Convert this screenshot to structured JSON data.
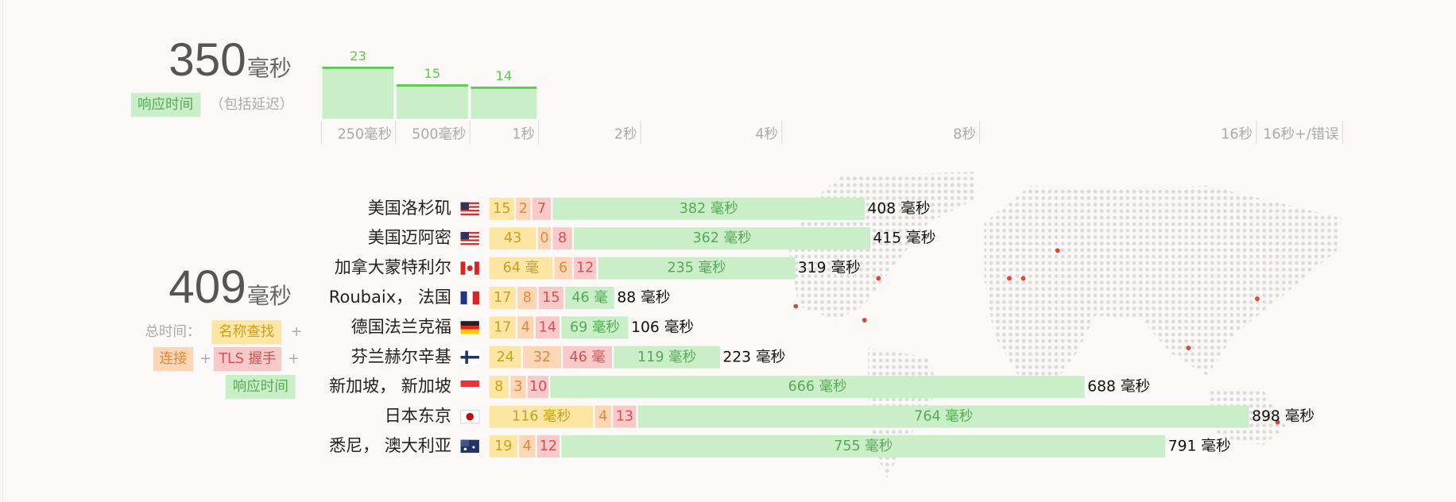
{
  "response_summary": {
    "value": 350,
    "unit": "毫秒",
    "label": "响应时间",
    "note": "（包括延迟）"
  },
  "histogram": {
    "buckets": [
      {
        "label": "250毫秒",
        "count": 23
      },
      {
        "label": "500毫秒",
        "count": 15
      },
      {
        "label": "1秒",
        "count": 14
      },
      {
        "label": "2秒"
      },
      {
        "label": "4秒"
      },
      {
        "label": "8秒"
      },
      {
        "label": "16秒"
      },
      {
        "label": "16秒+/错误"
      }
    ]
  },
  "total_summary": {
    "value": 409,
    "unit": "毫秒",
    "prefix": "总时间：",
    "dns": "名称查找",
    "plus_1": "+",
    "connect": "连接",
    "plus_2": "+",
    "tls": "TLS 握手",
    "plus_3": "+",
    "response": "响应时间"
  },
  "rows": [
    {
      "location": "美国洛杉矶",
      "dns": 15,
      "connect": 2,
      "tls": 7,
      "response": 382,
      "response_label": "382 毫秒",
      "total": 408,
      "total_label": "408 毫秒"
    },
    {
      "location": "美国迈阿密",
      "dns": 43,
      "connect": 0,
      "tls": 8,
      "response": 362,
      "response_label": "362 毫秒",
      "total": 415,
      "total_label": "415 毫秒"
    },
    {
      "location": "加拿大蒙特利尔",
      "dns": 64,
      "dns_label": "64 毫",
      "connect": 6,
      "tls": 12,
      "response": 235,
      "response_label": "235 毫秒",
      "total": 319,
      "total_label": "319 毫秒"
    },
    {
      "location": "Roubaix， 法国",
      "dns": 17,
      "connect": 8,
      "tls": 15,
      "response": 46,
      "response_label": "46 毫",
      "total": 88,
      "total_label": "88 毫秒"
    },
    {
      "location": "德国法兰克福",
      "dns": 17,
      "connect": 4,
      "tls": 14,
      "response": 69,
      "response_label": "69 毫秒",
      "total": 106,
      "total_label": "106 毫秒"
    },
    {
      "location": "芬兰赫尔辛基",
      "dns": 24,
      "connect": 32,
      "tls": 46,
      "tls_label": "46 毫",
      "response": 119,
      "response_label": "119 毫秒",
      "total": 223,
      "total_label": "223 毫秒"
    },
    {
      "location": "新加坡， 新加坡",
      "dns": 8,
      "connect": 3,
      "tls": 10,
      "response": 666,
      "response_label": "666 毫秒",
      "total": 688,
      "total_label": "688 毫秒"
    },
    {
      "location": "日本东京",
      "dns": 116,
      "dns_label": "116 毫秒",
      "connect": 4,
      "tls": 13,
      "response": 764,
      "response_label": "764 毫秒",
      "total": 898,
      "total_label": "898 毫秒"
    },
    {
      "location": "悉尼， 澳大利亚",
      "dns": 19,
      "connect": 4,
      "tls": 12,
      "response": 755,
      "response_label": "755 毫秒",
      "total": 791,
      "total_label": "791 毫秒"
    }
  ]
}
